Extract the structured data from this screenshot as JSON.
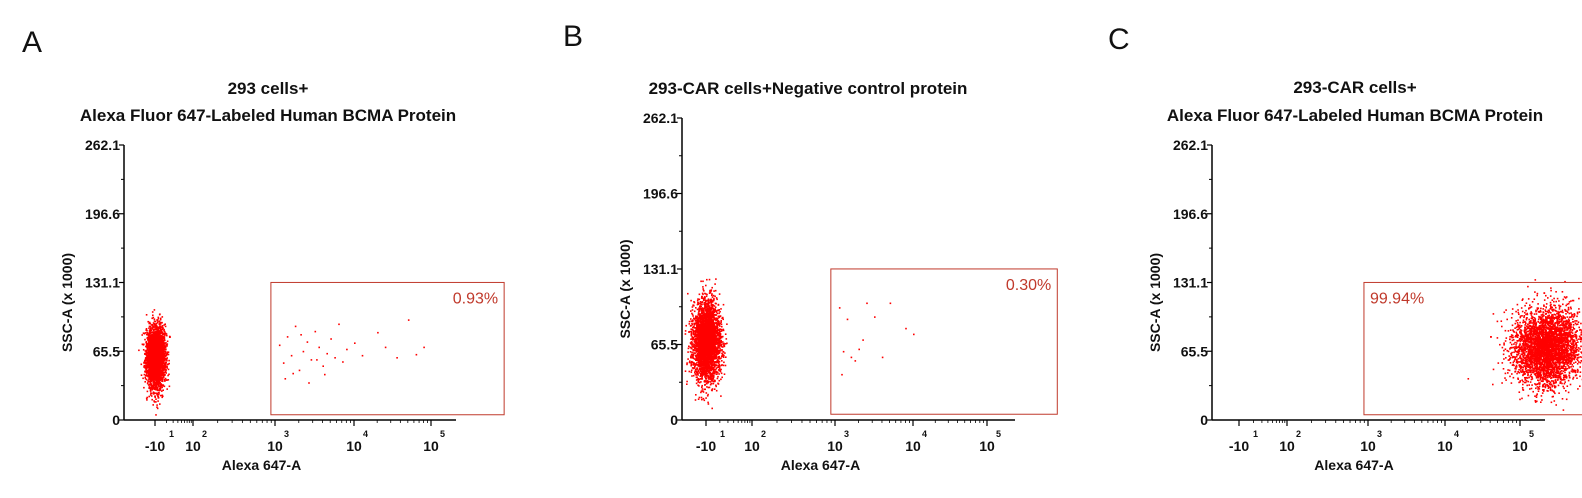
{
  "chart_data": [
    {
      "type": "scatter",
      "panel": "A",
      "title_lines": [
        "293 cells+",
        "Alexa Fluor 647-Labeled Human BCMA Protein"
      ],
      "xlabel": "Alexa 647-A",
      "ylabel": "SSC-A (x 1000)",
      "yticks": [
        "0",
        "65.5",
        "131.1",
        "196.6",
        "262.1"
      ],
      "ylim": [
        0,
        262.1
      ],
      "xticks": [
        {
          "base": "-10",
          "exp": "1"
        },
        {
          "base": "10",
          "exp": "2"
        },
        {
          "base": "10",
          "exp": "3"
        },
        {
          "base": "10",
          "exp": "4"
        },
        {
          "base": "10",
          "exp": "5"
        }
      ],
      "color": "#ff0000",
      "gate": {
        "label": "0.93%",
        "color": "#c0392b",
        "x_from_decade": 1.95,
        "x_to_decade": 4.95,
        "y_from": 5,
        "y_to": 131.1
      },
      "clusters": [
        {
          "center_decade": 0.0,
          "center_y": 60,
          "sd_decade": 0.12,
          "sd_y": 14,
          "count": 3500
        }
      ],
      "sparse_points": [
        [
          2.05,
          72
        ],
        [
          2.1,
          55
        ],
        [
          2.15,
          80
        ],
        [
          2.2,
          62
        ],
        [
          2.25,
          90
        ],
        [
          2.3,
          48
        ],
        [
          2.35,
          66
        ],
        [
          2.4,
          75
        ],
        [
          2.45,
          58
        ],
        [
          2.5,
          85
        ],
        [
          2.55,
          70
        ],
        [
          2.6,
          52
        ],
        [
          2.65,
          64
        ],
        [
          2.7,
          78
        ],
        [
          2.75,
          60
        ],
        [
          2.8,
          92
        ],
        [
          2.85,
          56
        ],
        [
          2.9,
          68
        ],
        [
          3.0,
          74
        ],
        [
          3.1,
          62
        ],
        [
          3.3,
          84
        ],
        [
          3.4,
          70
        ],
        [
          3.55,
          60
        ],
        [
          3.7,
          96
        ],
        [
          3.8,
          63
        ],
        [
          3.9,
          70
        ],
        [
          2.12,
          40
        ],
        [
          2.22,
          45
        ],
        [
          2.32,
          82
        ],
        [
          2.42,
          36
        ],
        [
          2.52,
          58
        ],
        [
          2.62,
          44
        ]
      ]
    },
    {
      "type": "scatter",
      "panel": "B",
      "title_lines": [
        "293-CAR cells+Negative control protein"
      ],
      "xlabel": "Alexa 647-A",
      "ylabel": "SSC-A (x 1000)",
      "yticks": [
        "0",
        "65.5",
        "131.1",
        "196.6",
        "262.1"
      ],
      "ylim": [
        0,
        262.1
      ],
      "xticks": [
        {
          "base": "-10",
          "exp": "1"
        },
        {
          "base": "10",
          "exp": "2"
        },
        {
          "base": "10",
          "exp": "3"
        },
        {
          "base": "10",
          "exp": "4"
        },
        {
          "base": "10",
          "exp": "5"
        }
      ],
      "color": "#ff0000",
      "gate": {
        "label": "0.30%",
        "color": "#c0392b",
        "x_from_decade": 1.95,
        "x_to_decade": 4.95,
        "y_from": 5,
        "y_to": 131.1
      },
      "clusters": [
        {
          "center_decade": 0.0,
          "center_y": 68,
          "sd_decade": 0.15,
          "sd_y": 17,
          "count": 3500
        }
      ],
      "sparse_points": [
        [
          2.05,
          98
        ],
        [
          2.1,
          60
        ],
        [
          2.15,
          88
        ],
        [
          2.2,
          55
        ],
        [
          2.3,
          62
        ],
        [
          2.4,
          102
        ],
        [
          2.5,
          90
        ],
        [
          2.6,
          55
        ],
        [
          2.7,
          102
        ],
        [
          2.9,
          80
        ],
        [
          3.0,
          75
        ],
        [
          2.08,
          40
        ],
        [
          2.25,
          52
        ],
        [
          2.35,
          70
        ]
      ]
    },
    {
      "type": "scatter",
      "panel": "C",
      "title_lines": [
        "293-CAR cells+",
        "Alexa Fluor 647-Labeled Human BCMA Protein"
      ],
      "xlabel": "Alexa 647-A",
      "ylabel": "SSC-A (x 1000)",
      "yticks": [
        "0",
        "65.5",
        "131.1",
        "196.6",
        "262.1"
      ],
      "ylim": [
        0,
        262.1
      ],
      "xticks": [
        {
          "base": "-10",
          "exp": "1"
        },
        {
          "base": "10",
          "exp": "2"
        },
        {
          "base": "10",
          "exp": "3"
        },
        {
          "base": "10",
          "exp": "4"
        },
        {
          "base": "10",
          "exp": "5"
        }
      ],
      "color": "#ff0000",
      "gate": {
        "label": "99.94%",
        "color": "#c0392b",
        "x_from_decade": 1.95,
        "x_to_decade": 4.95,
        "y_from": 5,
        "y_to": 131.1
      },
      "clusters": [
        {
          "center_decade": 4.35,
          "center_y": 70,
          "sd_decade": 0.22,
          "sd_y": 18,
          "count": 3800
        }
      ],
      "sparse_points": [
        [
          3.3,
          40
        ],
        [
          3.6,
          80
        ],
        [
          3.7,
          55
        ],
        [
          3.8,
          60
        ],
        [
          3.85,
          48
        ],
        [
          3.9,
          70
        ],
        [
          3.95,
          45
        ],
        [
          3.75,
          36
        ]
      ]
    }
  ],
  "panels": [
    {
      "label": "A"
    },
    {
      "label": "B"
    },
    {
      "label": "C"
    }
  ]
}
